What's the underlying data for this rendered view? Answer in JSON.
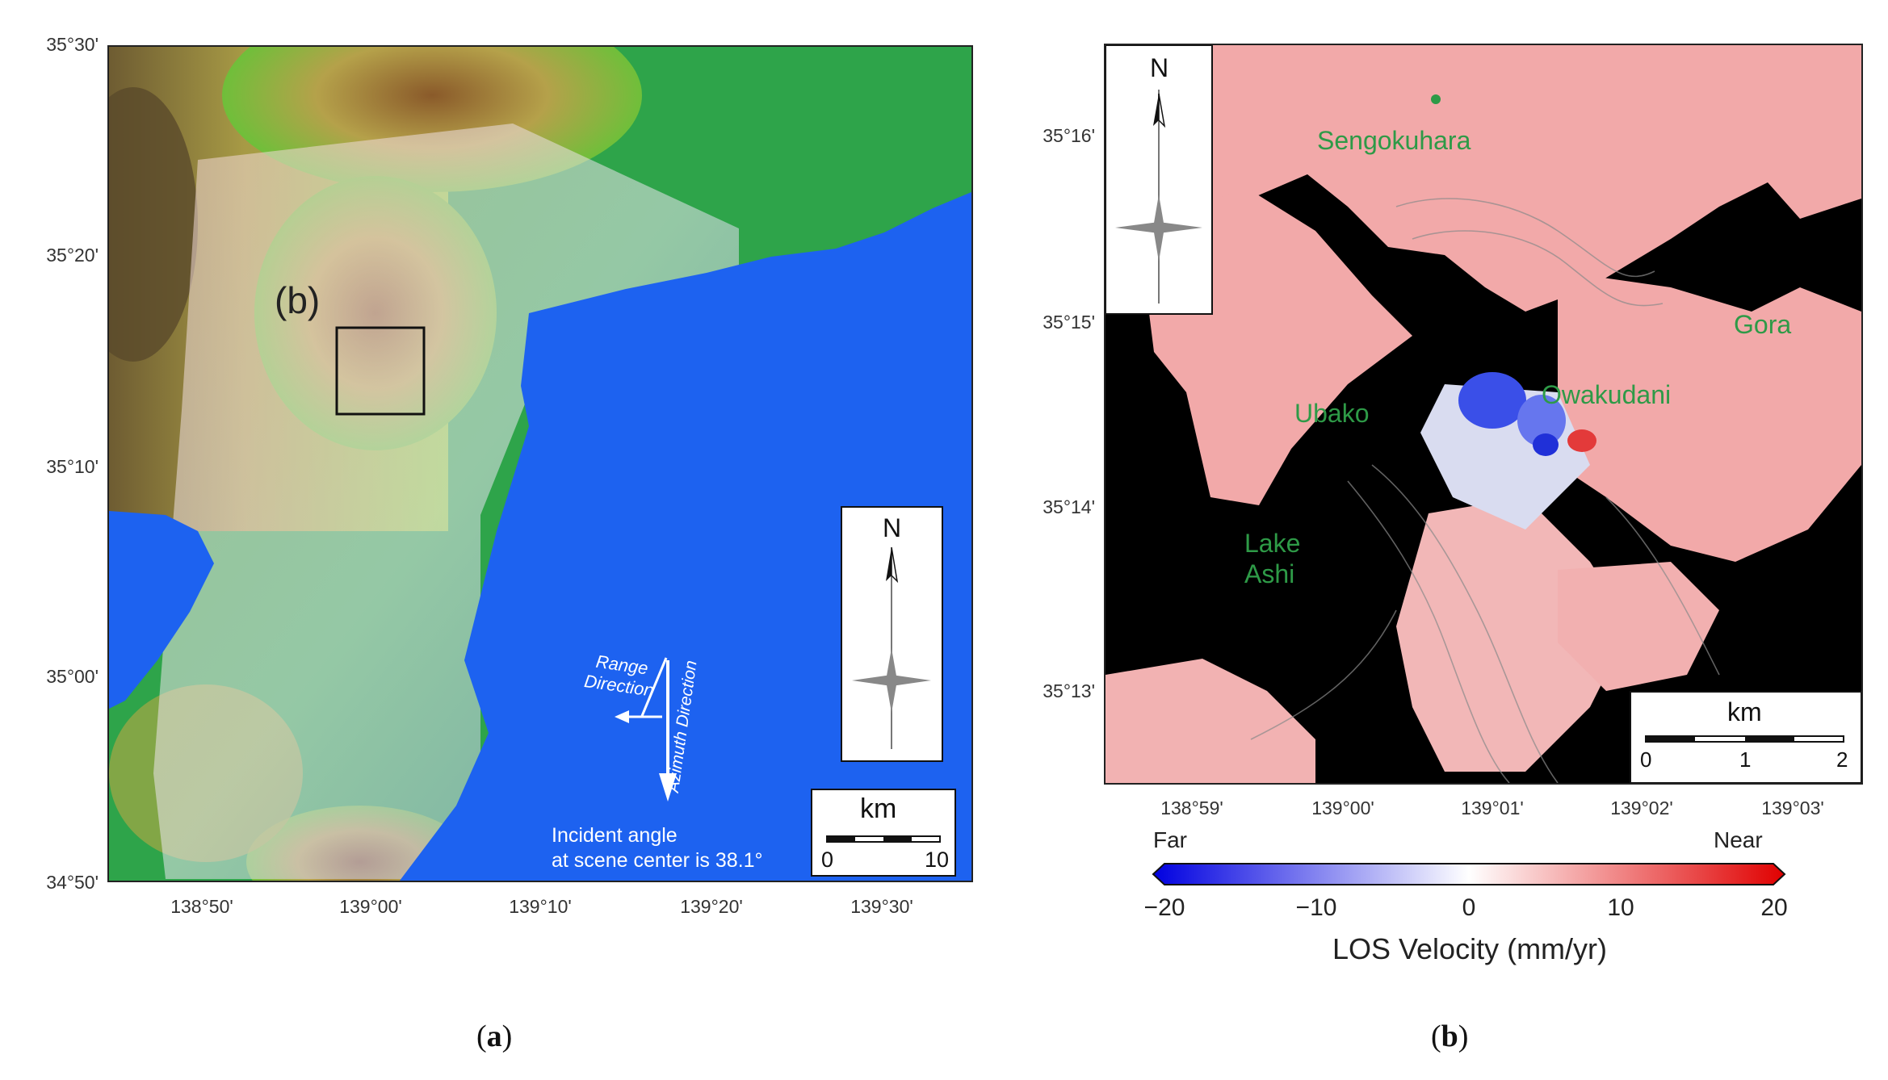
{
  "panel_a": {
    "y_ticks": [
      "35°30'",
      "35°20'",
      "35°10'",
      "35°00'",
      "34°50'"
    ],
    "x_ticks": [
      "138°50'",
      "139°00'",
      "139°10'",
      "139°20'",
      "139°30'"
    ],
    "inset_label": "(b)",
    "north_label": "N",
    "scale": {
      "unit": "km",
      "start": "0",
      "end": "10"
    },
    "range_label_1": "Range",
    "range_label_2": "Direction",
    "azimuth_label": "Azimuth Direction",
    "incident_line_1": "Incident angle",
    "incident_line_2": "at scene center is 38.1°",
    "caption_letter": "a"
  },
  "panel_b": {
    "y_ticks": [
      "35°16'",
      "35°15'",
      "35°14'",
      "35°13'"
    ],
    "x_ticks": [
      "138°59'",
      "139°00'",
      "139°01'",
      "139°02'",
      "139°03'"
    ],
    "places": {
      "sengokuhara": "Sengokuhara",
      "gora": "Gora",
      "owakudani": "Owakudani",
      "ubako": "Ubako",
      "lake_1": "Lake",
      "lake_2": "Ashi"
    },
    "north_label": "N",
    "scale": {
      "unit": "km",
      "start": "0",
      "mid": "1",
      "end": "2"
    },
    "caption_letter": "b"
  },
  "colorbar": {
    "far_label": "Far",
    "near_label": "Near",
    "ticks": [
      "−20",
      "−10",
      "0",
      "10",
      "20"
    ],
    "title": "LOS Velocity (mm/yr)",
    "min": -20,
    "max": 20,
    "colors": {
      "low": "#0000e0",
      "mid": "#ffffff",
      "high": "#e00000"
    }
  },
  "colors": {
    "sea": "#1d62f0",
    "land_green": "#26a64a",
    "place_text": "#2e9a47"
  }
}
